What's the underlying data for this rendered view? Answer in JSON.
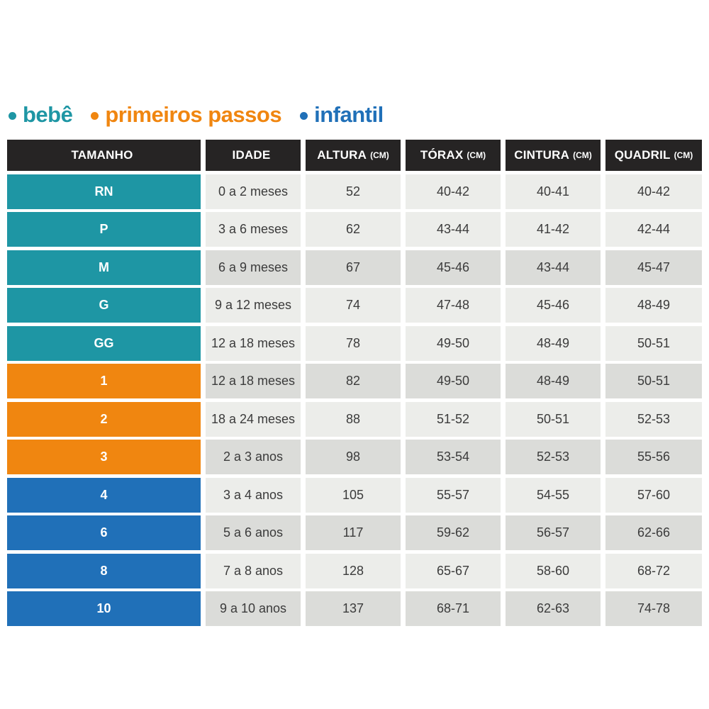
{
  "legend": {
    "items": [
      {
        "label": "bebê",
        "color": "#1E96A4"
      },
      {
        "label": "primeiros passos",
        "color": "#F08610"
      },
      {
        "label": "infantil",
        "color": "#2070B8"
      }
    ]
  },
  "colors": {
    "bebe": "#1E96A4",
    "primeiros_passos": "#F08610",
    "infantil": "#2070B8",
    "header_bg": "#262424",
    "row_light": "#ECEDEA",
    "row_dark": "#DBDCD9"
  },
  "table": {
    "headers": [
      {
        "label": "TAMANHO",
        "unit": ""
      },
      {
        "label": "IDADE",
        "unit": ""
      },
      {
        "label": "ALTURA",
        "unit": "(CM)"
      },
      {
        "label": "TÓRAX",
        "unit": "(CM)"
      },
      {
        "label": "CINTURA",
        "unit": "(CM)"
      },
      {
        "label": "QUADRIL",
        "unit": "(CM)"
      }
    ],
    "rows": [
      {
        "size": "RN",
        "group": "bebe",
        "age": "0 a 2 meses",
        "altura": "52",
        "torax": "40-42",
        "cintura": "40-41",
        "quadril": "40-42",
        "shade": "light"
      },
      {
        "size": "P",
        "group": "bebe",
        "age": "3 a 6 meses",
        "altura": "62",
        "torax": "43-44",
        "cintura": "41-42",
        "quadril": "42-44",
        "shade": "light"
      },
      {
        "size": "M",
        "group": "bebe",
        "age": "6 a 9 meses",
        "altura": "67",
        "torax": "45-46",
        "cintura": "43-44",
        "quadril": "45-47",
        "shade": "dark"
      },
      {
        "size": "G",
        "group": "bebe",
        "age": "9 a 12 meses",
        "altura": "74",
        "torax": "47-48",
        "cintura": "45-46",
        "quadril": "48-49",
        "shade": "light"
      },
      {
        "size": "GG",
        "group": "bebe",
        "age": "12 a 18 meses",
        "altura": "78",
        "torax": "49-50",
        "cintura": "48-49",
        "quadril": "50-51",
        "shade": "light"
      },
      {
        "size": "1",
        "group": "primeiros_passos",
        "age": "12 a 18 meses",
        "altura": "82",
        "torax": "49-50",
        "cintura": "48-49",
        "quadril": "50-51",
        "shade": "dark"
      },
      {
        "size": "2",
        "group": "primeiros_passos",
        "age": "18 a 24 meses",
        "altura": "88",
        "torax": "51-52",
        "cintura": "50-51",
        "quadril": "52-53",
        "shade": "light"
      },
      {
        "size": "3",
        "group": "primeiros_passos",
        "age": "2 a 3 anos",
        "altura": "98",
        "torax": "53-54",
        "cintura": "52-53",
        "quadril": "55-56",
        "shade": "dark"
      },
      {
        "size": "4",
        "group": "infantil",
        "age": "3 a 4 anos",
        "altura": "105",
        "torax": "55-57",
        "cintura": "54-55",
        "quadril": "57-60",
        "shade": "light"
      },
      {
        "size": "6",
        "group": "infantil",
        "age": "5 a 6 anos",
        "altura": "117",
        "torax": "59-62",
        "cintura": "56-57",
        "quadril": "62-66",
        "shade": "dark"
      },
      {
        "size": "8",
        "group": "infantil",
        "age": "7 a 8 anos",
        "altura": "128",
        "torax": "65-67",
        "cintura": "58-60",
        "quadril": "68-72",
        "shade": "light"
      },
      {
        "size": "10",
        "group": "infantil",
        "age": "9 a 10 anos",
        "altura": "137",
        "torax": "68-71",
        "cintura": "62-63",
        "quadril": "74-78",
        "shade": "dark"
      }
    ]
  },
  "chart_data": {
    "type": "table",
    "title": "",
    "columns": [
      "TAMANHO",
      "IDADE",
      "ALTURA (CM)",
      "TÓRAX (CM)",
      "CINTURA (CM)",
      "QUADRIL (CM)"
    ],
    "rows": [
      [
        "RN",
        "0 a 2 meses",
        "52",
        "40-42",
        "40-41",
        "40-42"
      ],
      [
        "P",
        "3 a 6 meses",
        "62",
        "43-44",
        "41-42",
        "42-44"
      ],
      [
        "M",
        "6 a 9 meses",
        "67",
        "45-46",
        "43-44",
        "45-47"
      ],
      [
        "G",
        "9 a 12 meses",
        "74",
        "47-48",
        "45-46",
        "48-49"
      ],
      [
        "GG",
        "12 a 18 meses",
        "78",
        "49-50",
        "48-49",
        "50-51"
      ],
      [
        "1",
        "12 a 18 meses",
        "82",
        "49-50",
        "48-49",
        "50-51"
      ],
      [
        "2",
        "18 a 24 meses",
        "88",
        "51-52",
        "50-51",
        "52-53"
      ],
      [
        "3",
        "2 a 3 anos",
        "98",
        "53-54",
        "52-53",
        "55-56"
      ],
      [
        "4",
        "3 a 4 anos",
        "105",
        "55-57",
        "54-55",
        "57-60"
      ],
      [
        "6",
        "5 a 6 anos",
        "117",
        "59-62",
        "56-57",
        "62-66"
      ],
      [
        "8",
        "7 a 8 anos",
        "128",
        "65-67",
        "58-60",
        "68-72"
      ],
      [
        "10",
        "9 a 10 anos",
        "137",
        "68-71",
        "62-63",
        "74-78"
      ]
    ],
    "groups": {
      "bebê": [
        "RN",
        "P",
        "M",
        "G",
        "GG"
      ],
      "primeiros passos": [
        "1",
        "2",
        "3"
      ],
      "infantil": [
        "4",
        "6",
        "8",
        "10"
      ]
    },
    "legend_position": "top-left"
  }
}
